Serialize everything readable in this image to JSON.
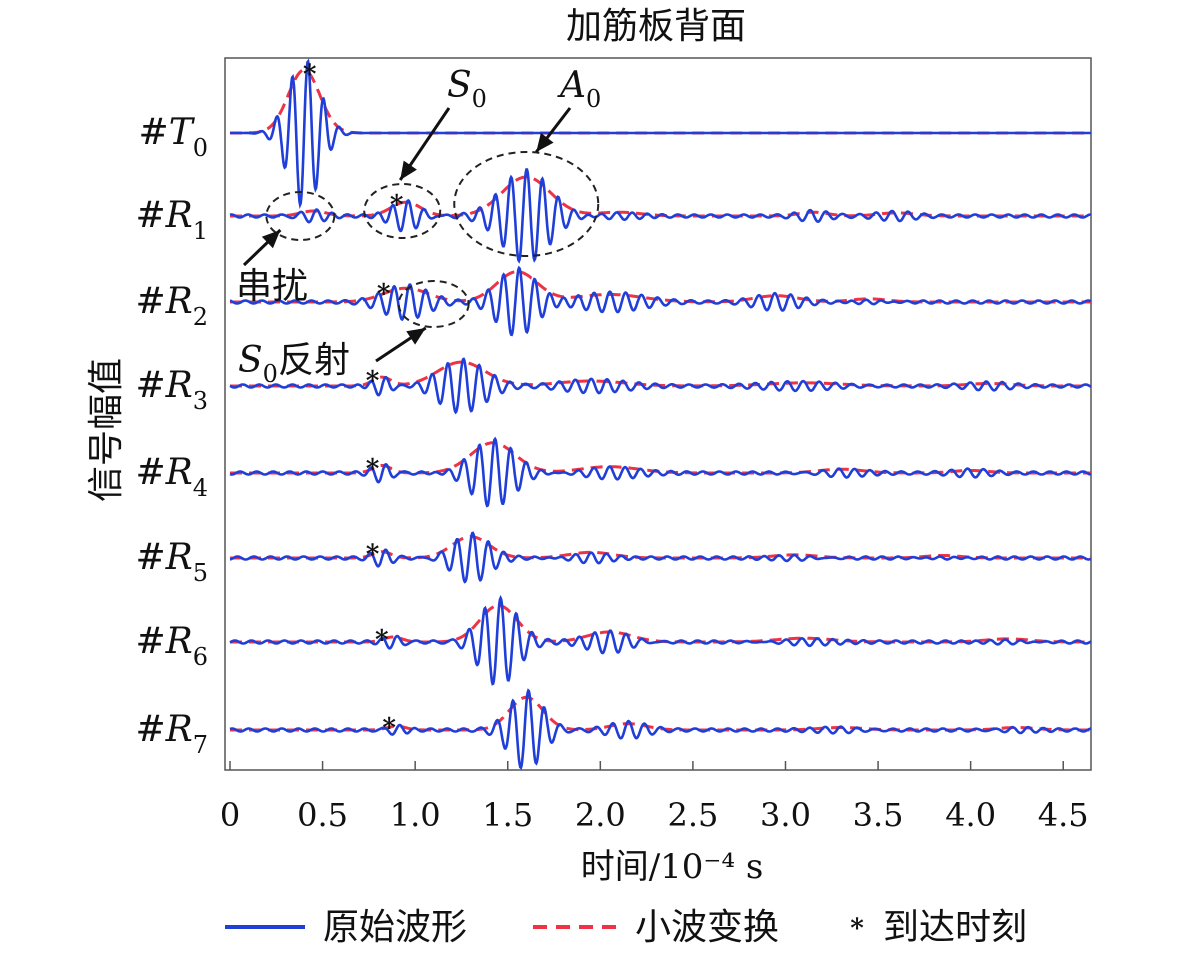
{
  "chart_data": {
    "type": "line",
    "title": "加筋板背面",
    "xlabel": "时间/10⁻⁴ s",
    "ylabel": "信号幅值",
    "xlim": [
      0,
      4.65
    ],
    "xticks": [
      "0",
      "0.5",
      "1.0",
      "1.5",
      "2.0",
      "2.5",
      "3.0",
      "3.5",
      "4.0",
      "4.5"
    ],
    "xtick_values": [
      0,
      0.5,
      1.0,
      1.5,
      2.0,
      2.5,
      3.0,
      3.5,
      4.0,
      4.5
    ],
    "grid": false,
    "legend_position": "bottom",
    "channels": [
      {
        "label": "#T",
        "sub": "0",
        "arrival": 0.43,
        "packets": [
          [
            0.4,
            0.085,
            1.0
          ]
        ]
      },
      {
        "label": "#R",
        "sub": "1",
        "arrival": 0.9,
        "packets": [
          [
            0.45,
            0.07,
            0.08
          ],
          [
            0.95,
            0.08,
            0.22
          ],
          [
            1.6,
            0.13,
            0.62
          ],
          [
            2.1,
            0.12,
            0.06
          ],
          [
            3.15,
            0.08,
            0.06
          ],
          [
            3.6,
            0.1,
            0.05
          ]
        ]
      },
      {
        "label": "#R",
        "sub": "2",
        "arrival": 0.83,
        "packets": [
          [
            0.95,
            0.12,
            0.22
          ],
          [
            1.55,
            0.11,
            0.48
          ],
          [
            2.05,
            0.18,
            0.12
          ],
          [
            2.95,
            0.12,
            0.1
          ],
          [
            3.45,
            0.1,
            0.05
          ]
        ]
      },
      {
        "label": "#R",
        "sub": "3",
        "arrival": 0.77,
        "packets": [
          [
            0.82,
            0.05,
            0.14
          ],
          [
            1.25,
            0.13,
            0.38
          ],
          [
            1.95,
            0.18,
            0.08
          ],
          [
            3.1,
            0.2,
            0.05
          ],
          [
            4.1,
            0.12,
            0.04
          ]
        ]
      },
      {
        "label": "#R",
        "sub": "4",
        "arrival": 0.77,
        "packets": [
          [
            0.82,
            0.05,
            0.12
          ],
          [
            1.42,
            0.12,
            0.48
          ],
          [
            2.05,
            0.16,
            0.1
          ],
          [
            3.3,
            0.12,
            0.06
          ],
          [
            4.0,
            0.1,
            0.04
          ]
        ]
      },
      {
        "label": "#R",
        "sub": "5",
        "arrival": 0.77,
        "packets": [
          [
            0.82,
            0.05,
            0.1
          ],
          [
            1.3,
            0.1,
            0.34
          ],
          [
            1.95,
            0.12,
            0.09
          ],
          [
            3.05,
            0.12,
            0.05
          ],
          [
            3.85,
            0.1,
            0.04
          ]
        ]
      },
      {
        "label": "#R",
        "sub": "6",
        "arrival": 0.82,
        "packets": [
          [
            0.88,
            0.05,
            0.08
          ],
          [
            1.45,
            0.1,
            0.58
          ],
          [
            2.05,
            0.12,
            0.16
          ],
          [
            3.1,
            0.15,
            0.06
          ],
          [
            4.2,
            0.12,
            0.05
          ]
        ]
      },
      {
        "label": "#R",
        "sub": "7",
        "arrival": 0.86,
        "packets": [
          [
            0.9,
            0.05,
            0.06
          ],
          [
            1.6,
            0.09,
            0.52
          ],
          [
            2.15,
            0.1,
            0.1
          ],
          [
            3.3,
            0.12,
            0.04
          ],
          [
            4.25,
            0.1,
            0.04
          ]
        ]
      }
    ],
    "carrier_period": 0.085,
    "series": [
      {
        "name": "原始波形",
        "color": "#1f3fd8",
        "style": "solid"
      },
      {
        "name": "小波变换",
        "color": "#ee3344",
        "style": "dashed"
      },
      {
        "name": "到达时刻",
        "color": "#111111",
        "style": "star-marker"
      }
    ],
    "annotations": [
      {
        "text": "S",
        "sub": "0",
        "target_channel": 1,
        "target_x": 0.93
      },
      {
        "text": "A",
        "sub": "0",
        "target_channel": 1,
        "target_x": 1.6
      },
      {
        "text": "串扰",
        "target_channel": 1,
        "target_x": 0.38
      },
      {
        "text": "S",
        "sub": "0",
        "suffix": "反射",
        "target_channel": 2,
        "target_x": 1.1
      }
    ]
  }
}
